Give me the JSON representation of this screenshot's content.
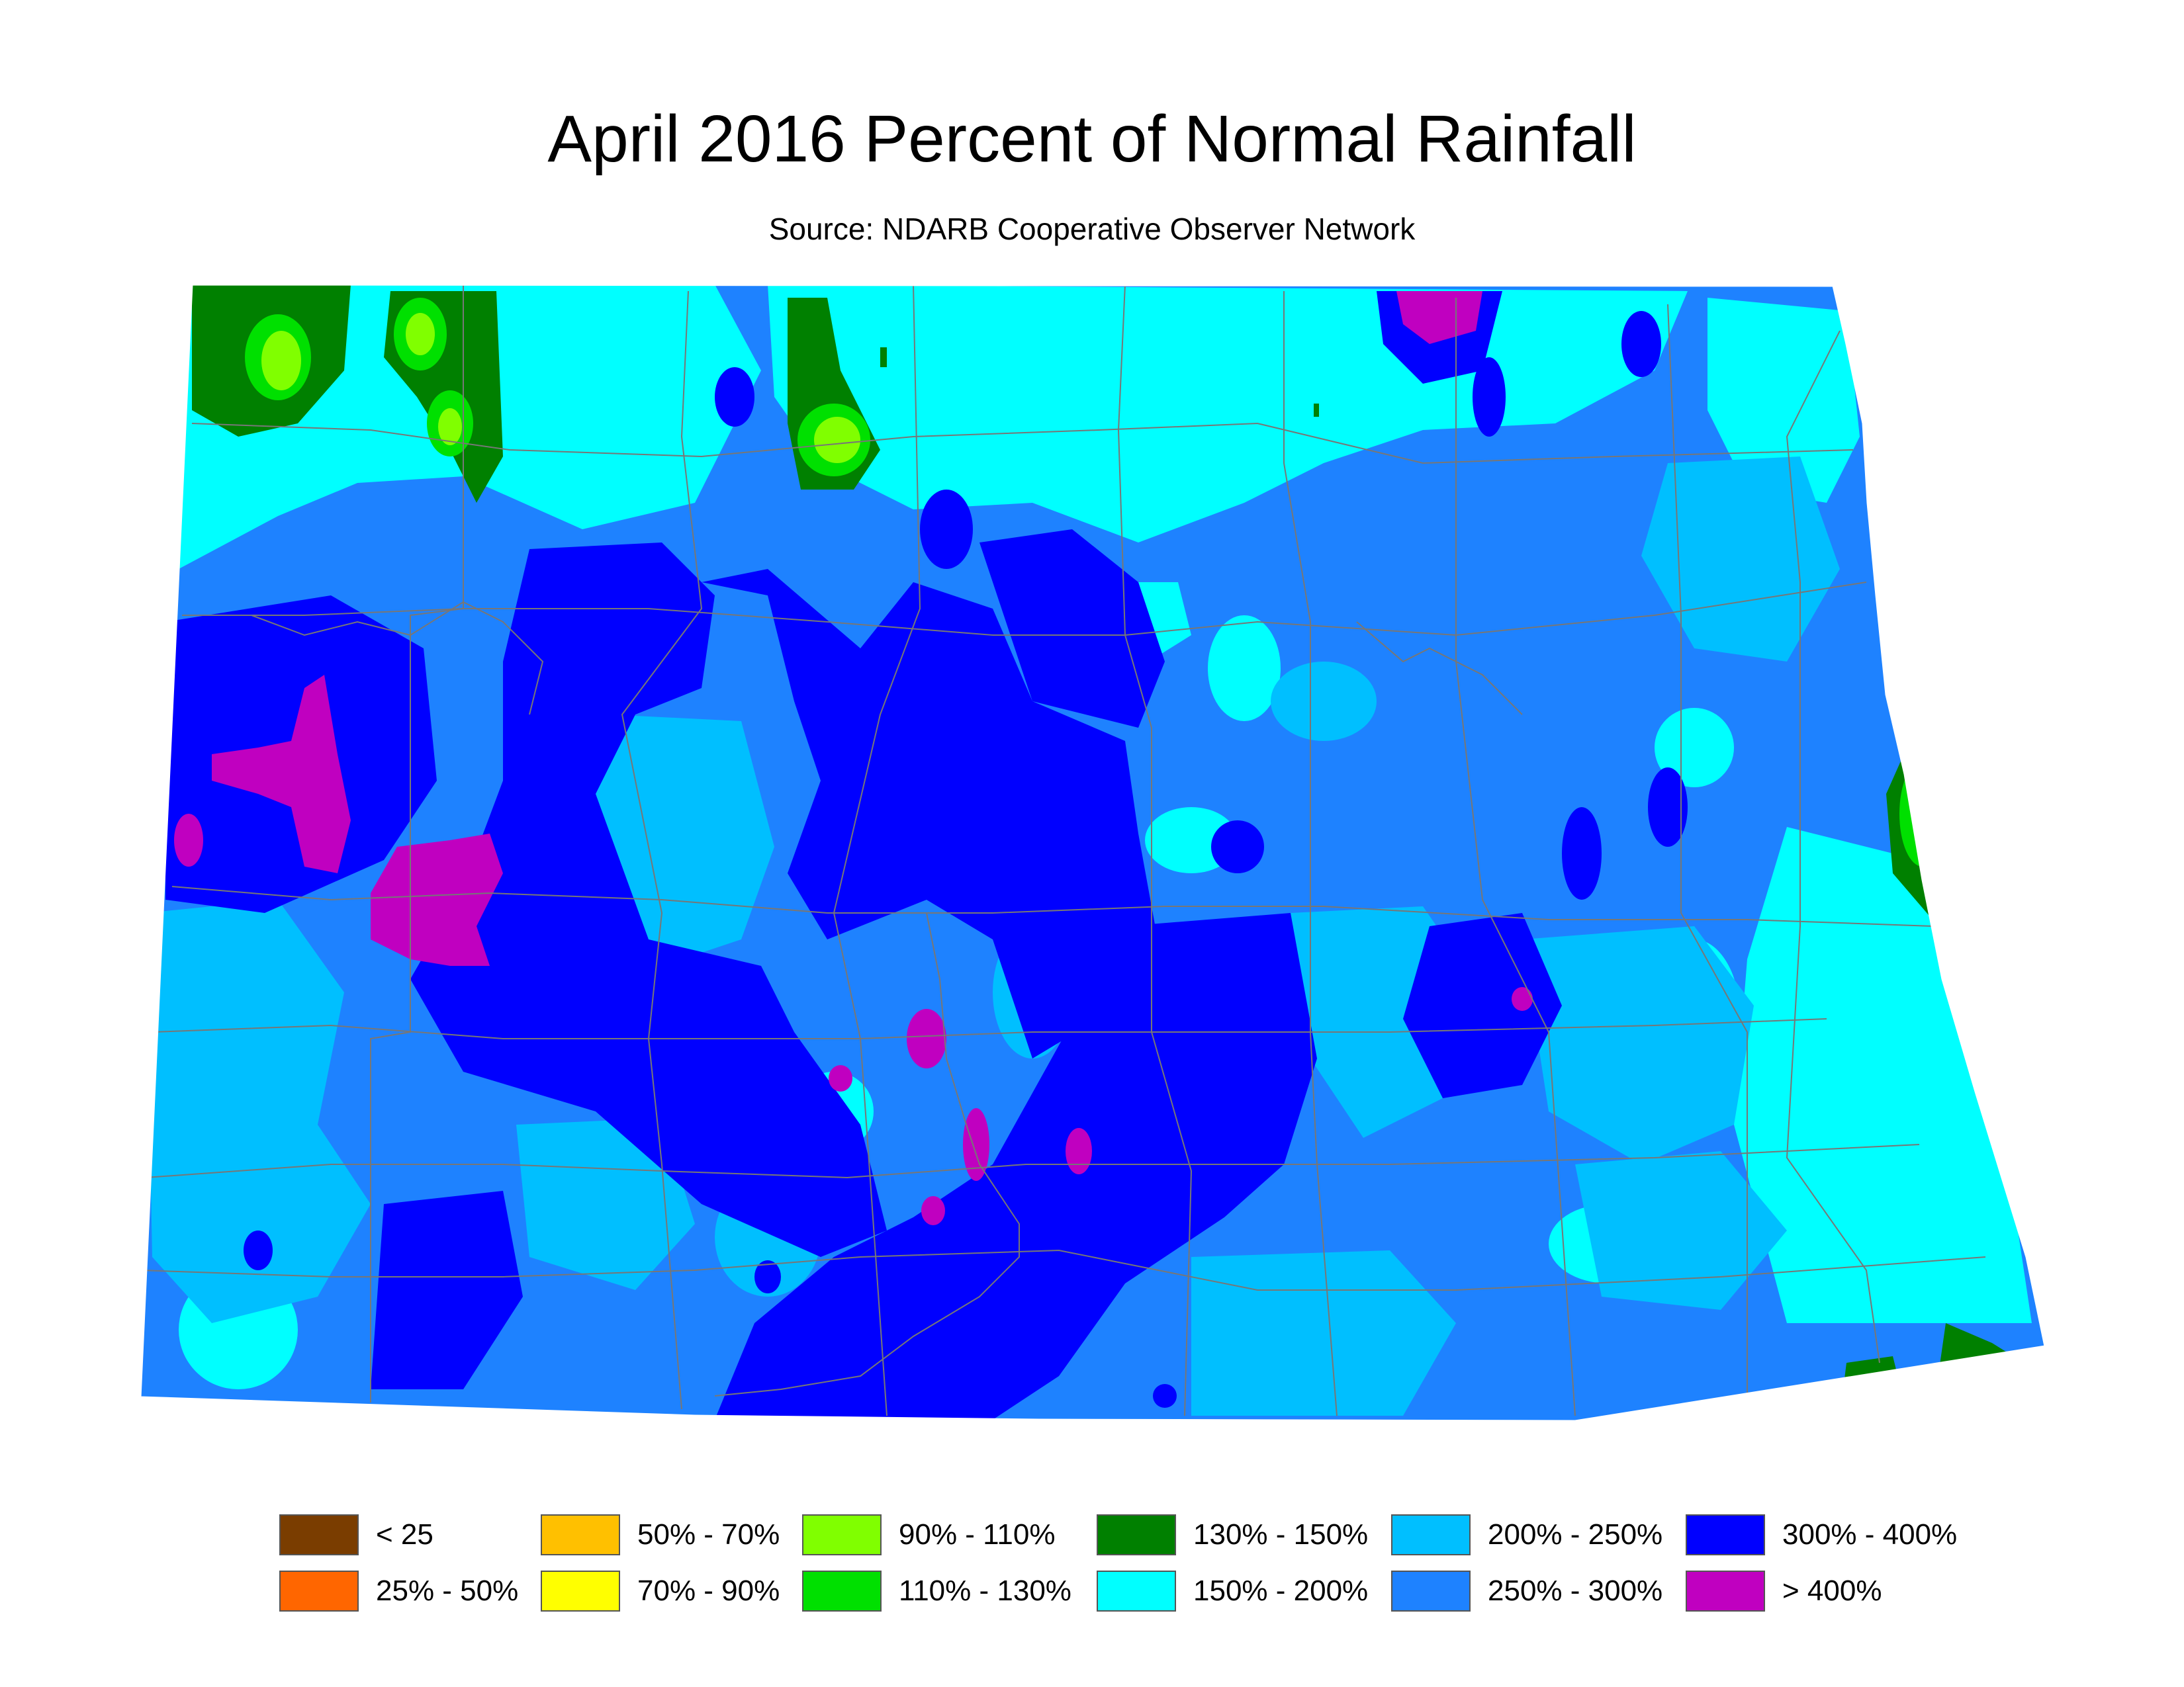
{
  "title": "April 2016 Percent of Normal Rainfall",
  "subtitle": "Source: NDARB Cooperative Observer Network",
  "colors": {
    "lt25": "#7a3d00",
    "p25_50": "#ff6600",
    "p50_70": "#ffc000",
    "p70_90": "#ffff00",
    "p90_110": "#80ff00",
    "p110_130": "#00e000",
    "p130_150": "#008000",
    "p150_200": "#00ffff",
    "p200_250": "#00bfff",
    "p250_300": "#1e82ff",
    "p300_400": "#0000ff",
    "gt400": "#c000c0",
    "county_lines": "#777777"
  },
  "legend": [
    {
      "label": "< 25",
      "color": "#7a3d00"
    },
    {
      "label": "25% - 50%",
      "color": "#ff6600"
    },
    {
      "label": "50% - 70%",
      "color": "#ffc000"
    },
    {
      "label": "70% - 90%",
      "color": "#ffff00"
    },
    {
      "label": "90% - 110%",
      "color": "#80ff00"
    },
    {
      "label": "110% - 130%",
      "color": "#00e000"
    },
    {
      "label": "130% - 150%",
      "color": "#008000"
    },
    {
      "label": "150% - 200%",
      "color": "#00ffff"
    },
    {
      "label": "200% - 250%",
      "color": "#00bfff"
    },
    {
      "label": "250% - 300%",
      "color": "#1e82ff"
    },
    {
      "label": "300% - 400%",
      "color": "#0000ff"
    },
    {
      "label": "> 400%",
      "color": "#c000c0"
    }
  ]
}
